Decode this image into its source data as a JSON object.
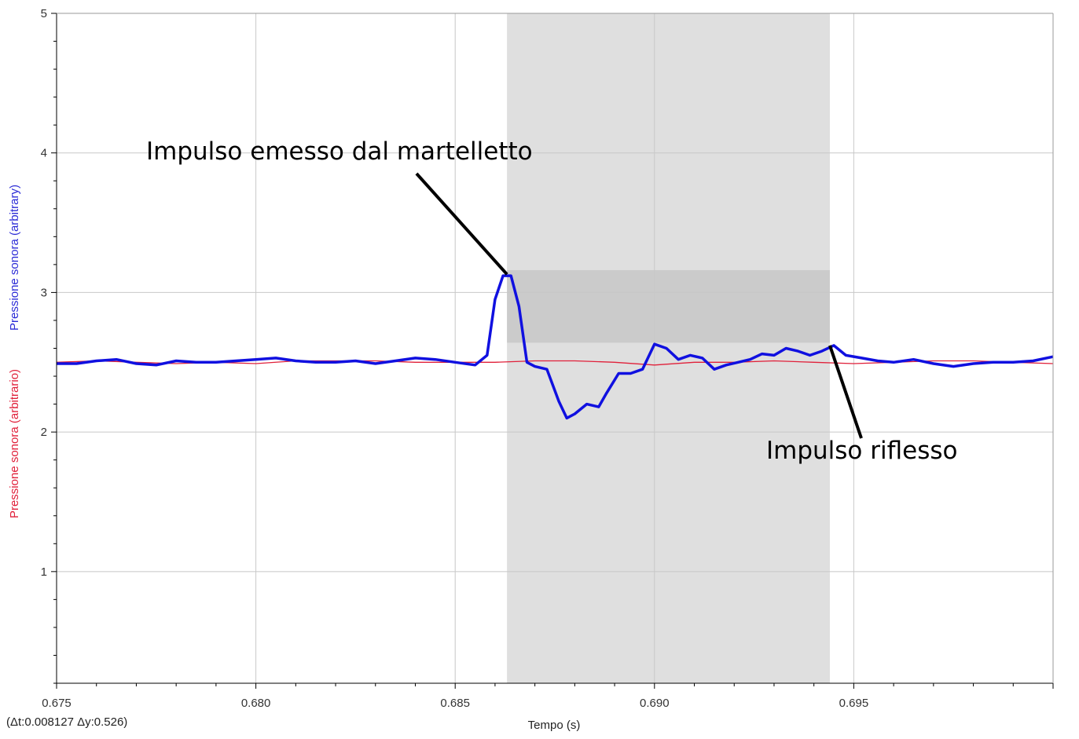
{
  "chart_data": {
    "type": "line",
    "title": "",
    "xlabel": "Tempo (s)",
    "ylabels": [
      {
        "text": "Pressione sonora (arbitrary)",
        "color": "#2b2bd6"
      },
      {
        "text": "Pressione sonora (arbitrario)",
        "color": "#e0203a"
      }
    ],
    "xlim": [
      0.675,
      0.7
    ],
    "ylim": [
      0.2,
      5.0
    ],
    "x_ticks": [
      0.675,
      0.68,
      0.685,
      0.69,
      0.695
    ],
    "x_tick_labels": [
      "0.675",
      "0.680",
      "0.685",
      "0.690",
      "0.695"
    ],
    "y_ticks": [
      1,
      2,
      3,
      4,
      5
    ],
    "y_tick_labels": [
      "1",
      "2",
      "3",
      "4",
      "5"
    ],
    "grid": true,
    "selection": {
      "x_start": 0.6863,
      "x_end": 0.6944,
      "y_low": 2.64,
      "y_high": 3.16
    },
    "series": [
      {
        "color": "#1010e0",
        "x": [
          0.675,
          0.6755,
          0.676,
          0.6765,
          0.677,
          0.6775,
          0.678,
          0.6785,
          0.679,
          0.6795,
          0.68,
          0.6805,
          0.681,
          0.6815,
          0.682,
          0.6825,
          0.683,
          0.6835,
          0.684,
          0.6845,
          0.685,
          0.6855,
          0.6858,
          0.686,
          0.6862,
          0.6864,
          0.6866,
          0.6868,
          0.687,
          0.6873,
          0.6876,
          0.6878,
          0.688,
          0.6883,
          0.6886,
          0.6888,
          0.6891,
          0.6894,
          0.6897,
          0.69,
          0.6903,
          0.6906,
          0.6909,
          0.6912,
          0.6915,
          0.6918,
          0.6921,
          0.6924,
          0.6927,
          0.693,
          0.6933,
          0.6936,
          0.6939,
          0.6942,
          0.6945,
          0.6948,
          0.6952,
          0.6956,
          0.696,
          0.6965,
          0.697,
          0.6975,
          0.698,
          0.6985,
          0.699,
          0.6995,
          0.7
        ],
        "y": [
          2.49,
          2.49,
          2.51,
          2.52,
          2.49,
          2.48,
          2.51,
          2.5,
          2.5,
          2.51,
          2.52,
          2.53,
          2.51,
          2.5,
          2.5,
          2.51,
          2.49,
          2.51,
          2.53,
          2.52,
          2.5,
          2.48,
          2.55,
          2.95,
          3.12,
          3.12,
          2.9,
          2.5,
          2.47,
          2.45,
          2.22,
          2.1,
          2.13,
          2.2,
          2.18,
          2.28,
          2.42,
          2.42,
          2.45,
          2.63,
          2.6,
          2.52,
          2.55,
          2.53,
          2.45,
          2.48,
          2.5,
          2.52,
          2.56,
          2.55,
          2.6,
          2.58,
          2.55,
          2.58,
          2.62,
          2.55,
          2.53,
          2.51,
          2.5,
          2.52,
          2.49,
          2.47,
          2.49,
          2.5,
          2.5,
          2.51,
          2.54
        ]
      },
      {
        "color": "#e0203a",
        "x": [
          0.675,
          0.676,
          0.677,
          0.678,
          0.679,
          0.68,
          0.681,
          0.682,
          0.683,
          0.684,
          0.685,
          0.686,
          0.687,
          0.688,
          0.689,
          0.69,
          0.691,
          0.692,
          0.693,
          0.694,
          0.695,
          0.696,
          0.697,
          0.698,
          0.699,
          0.7
        ],
        "y": [
          2.5,
          2.51,
          2.5,
          2.49,
          2.5,
          2.49,
          2.51,
          2.51,
          2.51,
          2.5,
          2.5,
          2.5,
          2.51,
          2.51,
          2.5,
          2.48,
          2.5,
          2.5,
          2.51,
          2.5,
          2.49,
          2.5,
          2.51,
          2.51,
          2.5,
          2.49
        ]
      }
    ],
    "annotations": [
      {
        "text": "Impulso emesso dal martelletto",
        "target_x": 0.6863,
        "target_y": 3.13
      },
      {
        "text": "Impulso riflesso",
        "target_x": 0.6944,
        "target_y": 2.62
      }
    ],
    "delta_readout": "(Δt:0.008127  Δy:0.526)"
  }
}
